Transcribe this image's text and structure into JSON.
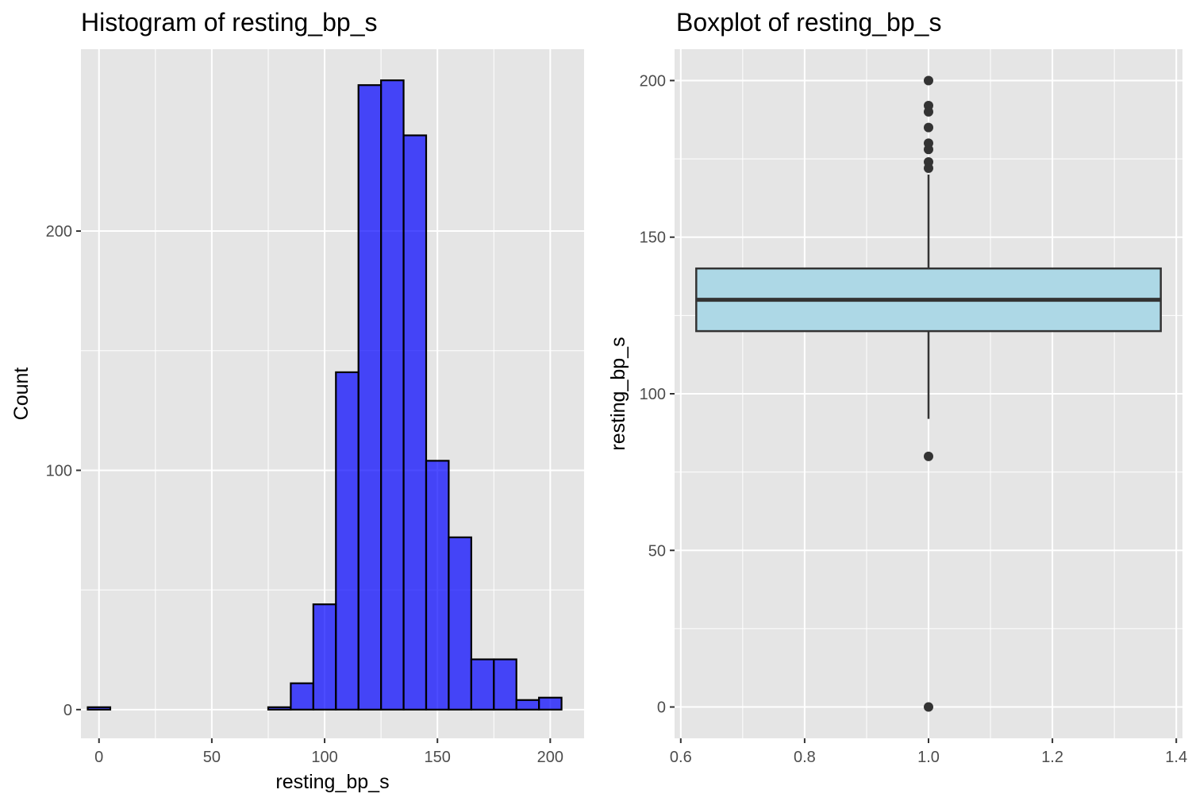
{
  "colors": {
    "panel_bg": "#e5e5e5",
    "grid": "#ffffff",
    "hist_fill": "#0000ff",
    "hist_outline": "#000000",
    "box_fill": "#add8e6",
    "box_outline": "#333333",
    "outlier": "#333333"
  },
  "chart_data": [
    {
      "type": "histogram",
      "title": "Histogram of resting_bp_s",
      "xlabel": "resting_bp_s",
      "ylabel": "Count",
      "xlim": [
        -8,
        215
      ],
      "ylim": [
        -12,
        276
      ],
      "xticks": [
        0,
        50,
        100,
        150,
        200
      ],
      "yticks": [
        0,
        100,
        200
      ],
      "bin_width": 10,
      "bins": [
        {
          "x0": -5,
          "x1": 5,
          "count": 1
        },
        {
          "x0": 5,
          "x1": 15,
          "count": 0
        },
        {
          "x0": 15,
          "x1": 25,
          "count": 0
        },
        {
          "x0": 25,
          "x1": 35,
          "count": 0
        },
        {
          "x0": 35,
          "x1": 45,
          "count": 0
        },
        {
          "x0": 45,
          "x1": 55,
          "count": 0
        },
        {
          "x0": 55,
          "x1": 65,
          "count": 0
        },
        {
          "x0": 65,
          "x1": 75,
          "count": 0
        },
        {
          "x0": 75,
          "x1": 85,
          "count": 1
        },
        {
          "x0": 85,
          "x1": 95,
          "count": 11
        },
        {
          "x0": 95,
          "x1": 105,
          "count": 44
        },
        {
          "x0": 105,
          "x1": 115,
          "count": 141
        },
        {
          "x0": 115,
          "x1": 125,
          "count": 261
        },
        {
          "x0": 125,
          "x1": 135,
          "count": 263
        },
        {
          "x0": 135,
          "x1": 145,
          "count": 240
        },
        {
          "x0": 145,
          "x1": 155,
          "count": 104
        },
        {
          "x0": 155,
          "x1": 165,
          "count": 72
        },
        {
          "x0": 165,
          "x1": 175,
          "count": 21
        },
        {
          "x0": 175,
          "x1": 185,
          "count": 21
        },
        {
          "x0": 185,
          "x1": 195,
          "count": 4
        },
        {
          "x0": 195,
          "x1": 205,
          "count": 5
        }
      ]
    },
    {
      "type": "boxplot",
      "title": "Boxplot of resting_bp_s",
      "xlabel": "",
      "ylabel": "resting_bp_s",
      "xlim": [
        0.59,
        1.41
      ],
      "ylim": [
        -10,
        210
      ],
      "xticks": [
        "0.6",
        "0.8",
        "1.0",
        "1.2",
        "1.4"
      ],
      "yticks": [
        0,
        50,
        100,
        150,
        200
      ],
      "box": {
        "x": 1.0,
        "x0": 0.625,
        "x1": 1.375,
        "q1": 120,
        "median": 130,
        "q3": 140,
        "whisker_low": 92,
        "whisker_high": 170
      },
      "outliers": [
        200,
        192,
        190,
        185,
        180,
        178,
        174,
        172,
        80,
        0
      ]
    }
  ]
}
